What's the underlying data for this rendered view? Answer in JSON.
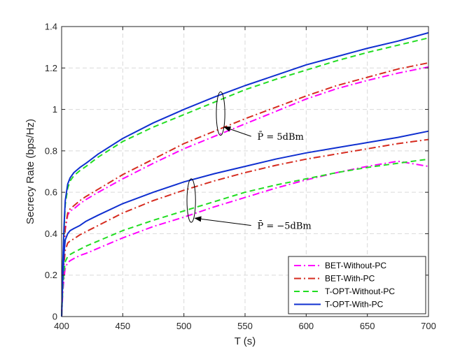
{
  "chart_data": {
    "type": "line",
    "title": "",
    "xlabel": "T (s)",
    "ylabel": "Secrecy Rate (bps/Hz)",
    "xlim": [
      400,
      700
    ],
    "ylim": [
      0,
      1.4
    ],
    "xticks": [
      400,
      450,
      500,
      550,
      600,
      650,
      700
    ],
    "yticks": [
      0,
      0.2,
      0.4,
      0.6,
      0.8,
      1,
      1.2,
      1.4
    ],
    "xtick_labels": [
      "400",
      "450",
      "500",
      "550",
      "600",
      "650",
      "700"
    ],
    "ytick_labels": [
      "0",
      "0.2",
      "0.4",
      "0.6",
      "0.8",
      "1",
      "1.2",
      "1.4"
    ],
    "grid": true,
    "legend_position": "bottom-right",
    "series": [
      {
        "name": "BET-Without-PC",
        "group": "5dBm",
        "color": "#ff00ff",
        "dash": "dashdot",
        "x": [
          400,
          401,
          402,
          403,
          405,
          407,
          410,
          415,
          420,
          430,
          450,
          475,
          500,
          525,
          550,
          575,
          600,
          625,
          650,
          675,
          700
        ],
        "y": [
          0,
          0.2,
          0.33,
          0.42,
          0.49,
          0.51,
          0.52,
          0.545,
          0.565,
          0.6,
          0.665,
          0.74,
          0.81,
          0.87,
          0.93,
          0.99,
          1.05,
          1.1,
          1.14,
          1.175,
          1.205
        ]
      },
      {
        "name": "BET-With-PC",
        "group": "5dBm",
        "color": "#d62b1f",
        "dash": "dashdot",
        "x": [
          400,
          401,
          402,
          403,
          405,
          407,
          410,
          415,
          420,
          430,
          450,
          475,
          500,
          525,
          550,
          575,
          600,
          625,
          650,
          675,
          700
        ],
        "y": [
          0,
          0.21,
          0.34,
          0.43,
          0.5,
          0.52,
          0.535,
          0.56,
          0.58,
          0.615,
          0.685,
          0.76,
          0.835,
          0.895,
          0.955,
          1.01,
          1.065,
          1.115,
          1.155,
          1.195,
          1.225
        ]
      },
      {
        "name": "T-OPT-Without-PC",
        "group": "5dBm",
        "color": "#22dd22",
        "dash": "dashed",
        "x": [
          400,
          401,
          402,
          403,
          405,
          407,
          410,
          415,
          420,
          430,
          450,
          475,
          500,
          525,
          550,
          575,
          600,
          625,
          650,
          675,
          700
        ],
        "y": [
          0,
          0.25,
          0.42,
          0.54,
          0.62,
          0.655,
          0.68,
          0.705,
          0.725,
          0.77,
          0.845,
          0.915,
          0.975,
          1.035,
          1.095,
          1.145,
          1.19,
          1.235,
          1.275,
          1.31,
          1.345
        ]
      },
      {
        "name": "T-OPT-With-PC",
        "group": "5dBm",
        "color": "#0f2fd0",
        "dash": "solid",
        "x": [
          400,
          401,
          402,
          403,
          405,
          407,
          410,
          415,
          420,
          430,
          450,
          475,
          500,
          525,
          550,
          575,
          600,
          625,
          650,
          675,
          700
        ],
        "y": [
          0,
          0.26,
          0.44,
          0.56,
          0.64,
          0.67,
          0.695,
          0.72,
          0.74,
          0.785,
          0.86,
          0.935,
          1.0,
          1.06,
          1.115,
          1.165,
          1.215,
          1.255,
          1.295,
          1.33,
          1.37
        ]
      },
      {
        "name": "BET-Without-PC",
        "group": "-5dBm",
        "color": "#ff00ff",
        "dash": "dashdot",
        "x": [
          400,
          401,
          402,
          403,
          405,
          407,
          410,
          415,
          420,
          430,
          450,
          475,
          500,
          525,
          550,
          575,
          600,
          625,
          650,
          675,
          700
        ],
        "y": [
          0,
          0.12,
          0.19,
          0.235,
          0.26,
          0.27,
          0.28,
          0.295,
          0.305,
          0.33,
          0.38,
          0.435,
          0.48,
          0.53,
          0.575,
          0.62,
          0.66,
          0.695,
          0.725,
          0.75,
          0.725
        ]
      },
      {
        "name": "BET-With-PC",
        "group": "-5dBm",
        "color": "#d62b1f",
        "dash": "dashdot",
        "x": [
          400,
          401,
          402,
          403,
          405,
          407,
          410,
          415,
          420,
          430,
          450,
          475,
          500,
          525,
          550,
          575,
          600,
          625,
          650,
          675,
          700
        ],
        "y": [
          0,
          0.16,
          0.26,
          0.32,
          0.355,
          0.365,
          0.375,
          0.395,
          0.41,
          0.44,
          0.5,
          0.56,
          0.61,
          0.655,
          0.695,
          0.73,
          0.76,
          0.785,
          0.81,
          0.835,
          0.855
        ]
      },
      {
        "name": "T-OPT-Without-PC",
        "group": "-5dBm",
        "color": "#22dd22",
        "dash": "dashed",
        "x": [
          400,
          401,
          402,
          403,
          405,
          407,
          410,
          415,
          420,
          430,
          450,
          475,
          500,
          525,
          550,
          575,
          600,
          625,
          650,
          675,
          700
        ],
        "y": [
          0,
          0.14,
          0.22,
          0.265,
          0.29,
          0.3,
          0.31,
          0.325,
          0.34,
          0.365,
          0.415,
          0.465,
          0.51,
          0.555,
          0.6,
          0.635,
          0.665,
          0.695,
          0.72,
          0.74,
          0.76
        ]
      },
      {
        "name": "T-OPT-With-PC",
        "group": "-5dBm",
        "color": "#0f2fd0",
        "dash": "solid",
        "x": [
          400,
          401,
          402,
          403,
          405,
          407,
          410,
          415,
          420,
          430,
          450,
          475,
          500,
          525,
          550,
          575,
          600,
          625,
          650,
          675,
          700
        ],
        "y": [
          0,
          0.19,
          0.31,
          0.37,
          0.4,
          0.415,
          0.425,
          0.44,
          0.46,
          0.49,
          0.545,
          0.6,
          0.65,
          0.69,
          0.725,
          0.76,
          0.79,
          0.815,
          0.84,
          0.865,
          0.895
        ]
      }
    ],
    "legend": [
      {
        "label": "BET-Without-PC",
        "color": "#ff00ff",
        "dash": "dashdot"
      },
      {
        "label": "BET-With-PC",
        "color": "#d62b1f",
        "dash": "dashdot"
      },
      {
        "label": "T-OPT-Without-PC",
        "color": "#22dd22",
        "dash": "dashed"
      },
      {
        "label": "T-OPT-With-PC",
        "color": "#0f2fd0",
        "dash": "solid"
      }
    ],
    "annotations": [
      {
        "text": "P̄ = 5dBm",
        "ellipse_center": [
          530,
          0.98
        ],
        "ellipse_radii": [
          3.5,
          0.105
        ],
        "arrow_from": [
          555,
          0.87
        ],
        "arrow_to": [
          533,
          0.915
        ],
        "text_at": [
          560,
          0.87
        ]
      },
      {
        "text": "P̄ = −5dBm",
        "ellipse_center": [
          506,
          0.56
        ],
        "ellipse_radii": [
          3.5,
          0.105
        ],
        "arrow_from": [
          555,
          0.44
        ],
        "arrow_to": [
          509,
          0.475
        ],
        "text_at": [
          560,
          0.44
        ]
      }
    ]
  }
}
